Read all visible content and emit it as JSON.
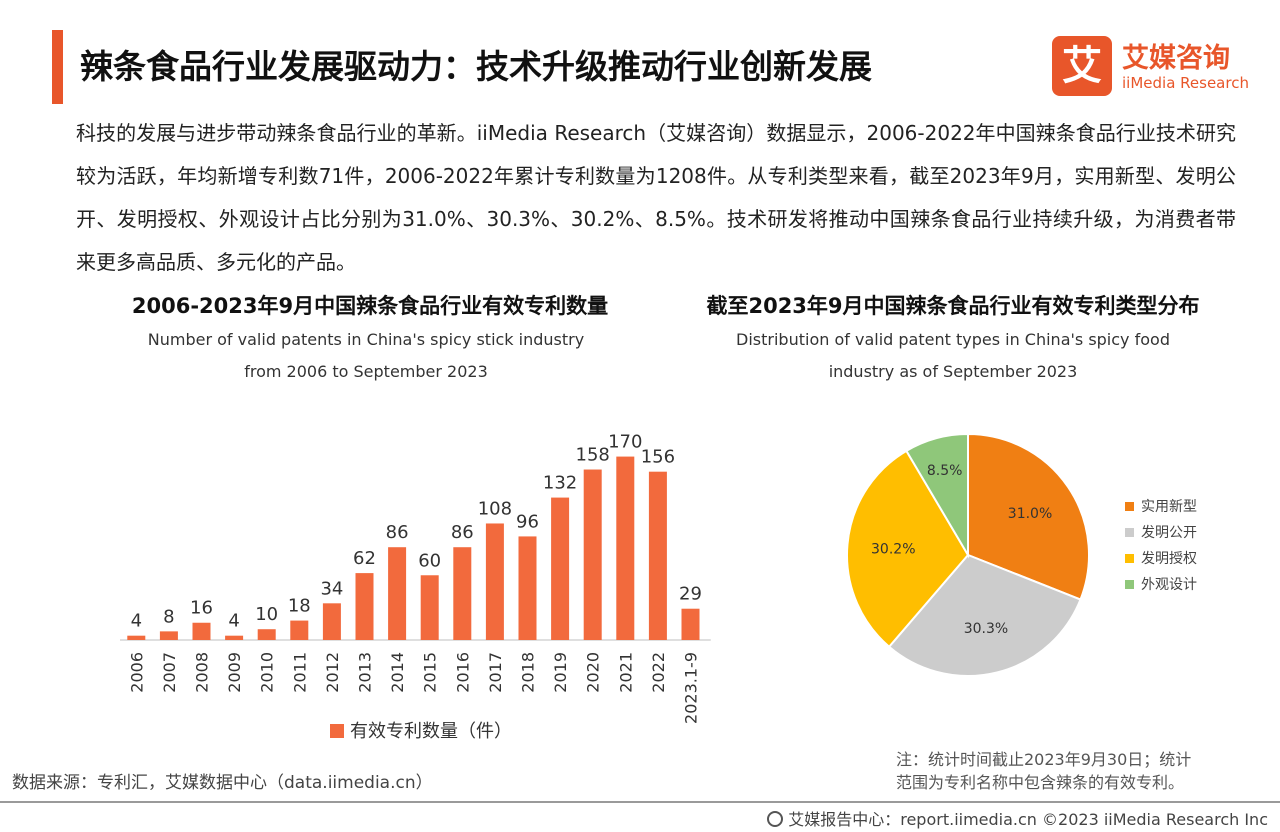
{
  "header": {
    "title": "辣条食品行业发展驱动力：技术升级推动行业创新发展",
    "accent_color": "#e8562a"
  },
  "logo": {
    "mark": "艾",
    "name_cn": "艾媒咨询",
    "name_en": "iiMedia Research"
  },
  "intro": "科技的发展与进步带动辣条食品行业的革新。iiMedia Research（艾媒咨询）数据显示，2006-2022年中国辣条食品行业技术研究较为活跃，年均新增专利数71件，2006-2022年累计专利数量为1208件。从专利类型来看，截至2023年9月，实用新型、发明公开、发明授权、外观设计占比分别为31.0%、30.3%、30.2%、8.5%。技术研发将推动中国辣条食品行业持续升级，为消费者带来更多高品质、多元化的产品。",
  "chart_data": [
    {
      "type": "bar",
      "title": "2006-2023年9月中国辣条食品行业有效专利数量",
      "subtitle": "Number of valid patents in China's spicy stick industry from 2006 to September 2023",
      "subtitle_lines": [
        "Number of valid patents in China's spicy stick industry",
        "from 2006 to September 2023"
      ],
      "categories": [
        "2006",
        "2007",
        "2008",
        "2009",
        "2010",
        "2011",
        "2012",
        "2013",
        "2014",
        "2015",
        "2016",
        "2017",
        "2018",
        "2019",
        "2020",
        "2021",
        "2022",
        "2023.1-9"
      ],
      "series": [
        {
          "name": "有效专利数量（件）",
          "values": [
            4,
            8,
            16,
            4,
            10,
            18,
            34,
            62,
            86,
            60,
            86,
            108,
            96,
            132,
            158,
            170,
            156,
            29
          ],
          "color": "#f26a3d"
        }
      ],
      "ylim": [
        0,
        190
      ],
      "grid": false,
      "legend": "bottom"
    },
    {
      "type": "pie",
      "title": "截至2023年9月中国辣条食品行业有效专利类型分布",
      "subtitle": "Distribution of valid patent types in China's spicy food industry as of September 2023",
      "subtitle_lines": [
        "Distribution of valid patent types in China's spicy food",
        "industry as of September 2023"
      ],
      "slices": [
        {
          "label": "实用新型",
          "value": 31.0,
          "text": "31.0%",
          "color": "#f07f13"
        },
        {
          "label": "发明公开",
          "value": 30.3,
          "text": "30.3%",
          "color": "#cccccc"
        },
        {
          "label": "发明授权",
          "value": 30.2,
          "text": "30.2%",
          "color": "#ffbe00"
        },
        {
          "label": "外观设计",
          "value": 8.5,
          "text": "8.5%",
          "color": "#8fc77a"
        }
      ],
      "legend": "right"
    }
  ],
  "source": "数据来源：专利汇，艾媒数据中心（data.iimedia.cn）",
  "note_lines": [
    "注：统计时间截止2023年9月30日；统计",
    "范围为专利名称中包含辣条的有效专利。"
  ],
  "footer": "艾媒报告中心：report.iimedia.cn ©2023 iiMedia Research Inc"
}
